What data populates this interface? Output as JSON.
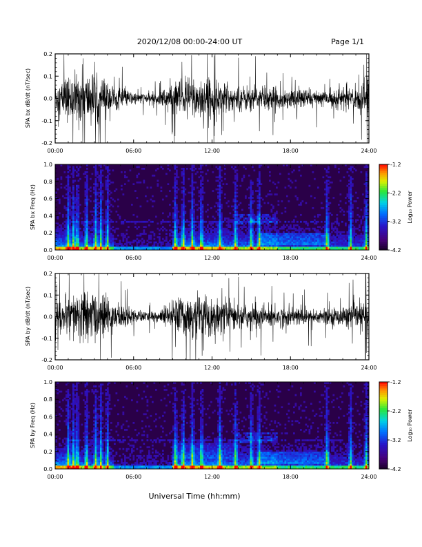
{
  "header": {
    "title": "2020/12/08  00:00-24:00 UT",
    "page": "Page 1/1"
  },
  "footer": {
    "xlabel": "Universal Time (hh:mm)"
  },
  "colorbar": {
    "label": "Log₁₀ Power",
    "ticks": [
      "-1.2",
      "-2.2",
      "-3.2",
      "-4.2"
    ],
    "range": [
      -4.2,
      -1.2
    ]
  },
  "chart_data": [
    {
      "type": "line",
      "ylabel": "SPA bx dB/dt (nT/sec)",
      "xlim": [
        0,
        24
      ],
      "ylim": [
        -0.2,
        0.2
      ],
      "x_ticks": [
        "00:00",
        "06:00",
        "12:00",
        "18:00",
        "24:00"
      ],
      "y_ticks": [
        "0.2",
        "0.1",
        "0.0",
        "-0.1",
        "-0.2"
      ],
      "envelope": {
        "hours": [
          0,
          1,
          2,
          3,
          4,
          5,
          6,
          7,
          8,
          9,
          10,
          11,
          12,
          13,
          14,
          15,
          16,
          17,
          18,
          19,
          20,
          21,
          22,
          23,
          24
        ],
        "amplitude": [
          0.06,
          0.09,
          0.11,
          0.1,
          0.07,
          0.04,
          0.025,
          0.02,
          0.03,
          0.07,
          0.09,
          0.09,
          0.08,
          0.06,
          0.05,
          0.05,
          0.05,
          0.04,
          0.04,
          0.04,
          0.035,
          0.035,
          0.04,
          0.05,
          0.08
        ]
      }
    },
    {
      "type": "heatmap",
      "ylabel": "SPA bx Freq (Hz)",
      "xlim": [
        0,
        24
      ],
      "ylim": [
        0,
        1
      ],
      "x_ticks": [
        "00:00",
        "06:00",
        "12:00",
        "18:00",
        "24:00"
      ],
      "y_ticks": [
        "1.0",
        "0.8",
        "0.6",
        "0.4",
        "0.2",
        "0.0"
      ],
      "z_range": [
        -4.2,
        -1.2
      ]
    },
    {
      "type": "line",
      "ylabel": "SPA by dB/dt (nT/sec)",
      "xlim": [
        0,
        24
      ],
      "ylim": [
        -0.2,
        0.2
      ],
      "x_ticks": [
        "00:00",
        "06:00",
        "12:00",
        "18:00",
        "24:00"
      ],
      "y_ticks": [
        "0.2",
        "0.1",
        "0.0",
        "-0.1",
        "-0.2"
      ],
      "envelope": {
        "hours": [
          0,
          1,
          2,
          3,
          4,
          5,
          6,
          7,
          8,
          9,
          10,
          11,
          12,
          13,
          14,
          15,
          16,
          17,
          18,
          19,
          20,
          21,
          22,
          23,
          24
        ],
        "amplitude": [
          0.05,
          0.08,
          0.11,
          0.1,
          0.08,
          0.05,
          0.03,
          0.02,
          0.025,
          0.07,
          0.09,
          0.09,
          0.08,
          0.06,
          0.05,
          0.05,
          0.05,
          0.045,
          0.04,
          0.04,
          0.035,
          0.035,
          0.04,
          0.05,
          0.07
        ]
      }
    },
    {
      "type": "heatmap",
      "ylabel": "SPA by Freq (Hz)",
      "xlim": [
        0,
        24
      ],
      "ylim": [
        0,
        1
      ],
      "x_ticks": [
        "00:00",
        "06:00",
        "12:00",
        "18:00",
        "24:00"
      ],
      "y_ticks": [
        "1.0",
        "0.8",
        "0.6",
        "0.4",
        "0.2",
        "0.0"
      ],
      "z_range": [
        -4.2,
        -1.2
      ]
    }
  ]
}
